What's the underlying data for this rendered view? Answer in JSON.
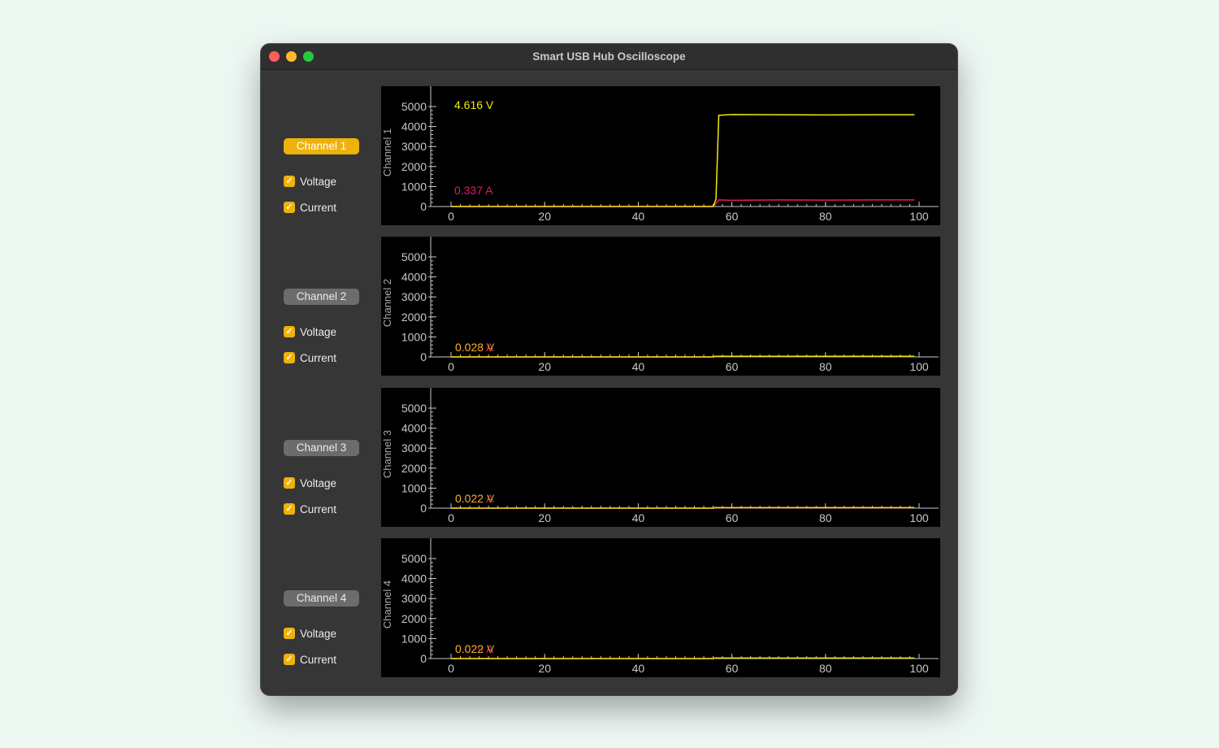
{
  "window": {
    "title": "Smart USB Hub Oscilloscope"
  },
  "colors": {
    "voltage": "#f0ea10",
    "current": "#e8176d",
    "accent": "#efb20c"
  },
  "channels": [
    {
      "button_label": "Channel 1",
      "active": true,
      "voltage_label": "Voltage",
      "current_label": "Current",
      "voltage_checked": true,
      "current_checked": true,
      "y_label": "Channel 1",
      "voltage_readout": "4.616 V",
      "current_readout": "0.337 A"
    },
    {
      "button_label": "Channel 2",
      "active": false,
      "voltage_label": "Voltage",
      "current_label": "Current",
      "voltage_checked": true,
      "current_checked": true,
      "y_label": "Channel 2",
      "voltage_readout": "0.028 V",
      "current_readout": "0.023 A"
    },
    {
      "button_label": "Channel 3",
      "active": false,
      "voltage_label": "Voltage",
      "current_label": "Current",
      "voltage_checked": true,
      "current_checked": true,
      "y_label": "Channel 3",
      "voltage_readout": "0.022 V",
      "current_readout": "0.022 A"
    },
    {
      "button_label": "Channel 4",
      "active": false,
      "voltage_label": "Voltage",
      "current_label": "Current",
      "voltage_checked": true,
      "current_checked": true,
      "y_label": "Channel 4",
      "voltage_readout": "0.022 V",
      "current_readout": "0.029 A"
    }
  ],
  "chart_data": [
    {
      "type": "line",
      "ylabel": "Channel 1",
      "xlim": [
        0,
        100
      ],
      "ylim": [
        0,
        5000
      ],
      "x_ticks": [
        0,
        20,
        40,
        60,
        80,
        100
      ],
      "y_ticks": [
        0,
        1000,
        2000,
        3000,
        4000,
        5000
      ],
      "series": [
        {
          "color": "#f0ea10",
          "x": [
            0,
            56,
            56.6,
            57.2,
            60,
            70,
            80,
            90,
            99
          ],
          "values": [
            0,
            0,
            350,
            4560,
            4600,
            4590,
            4580,
            4590,
            4590
          ]
        },
        {
          "color": "#e8176d",
          "x": [
            0,
            56,
            56.6,
            57.2,
            60,
            70,
            80,
            90,
            99
          ],
          "values": [
            0,
            0,
            150,
            330,
            310,
            330,
            320,
            330,
            330
          ]
        }
      ]
    },
    {
      "type": "line",
      "ylabel": "Channel 2",
      "xlim": [
        0,
        100
      ],
      "ylim": [
        0,
        5000
      ],
      "x_ticks": [
        0,
        20,
        40,
        60,
        80,
        100
      ],
      "y_ticks": [
        0,
        1000,
        2000,
        3000,
        4000,
        5000
      ],
      "series": [
        {
          "color": "#f0ea10",
          "x": [
            0,
            56,
            56.3,
            99
          ],
          "values": [
            0,
            0,
            30,
            30
          ]
        },
        {
          "color": "#e8176d",
          "x": [
            0,
            56,
            56.3,
            99
          ],
          "values": [
            0,
            0,
            20,
            20
          ]
        }
      ]
    },
    {
      "type": "line",
      "ylabel": "Channel 3",
      "xlim": [
        0,
        100
      ],
      "ylim": [
        0,
        5000
      ],
      "x_ticks": [
        0,
        20,
        40,
        60,
        80,
        100
      ],
      "y_ticks": [
        0,
        1000,
        2000,
        3000,
        4000,
        5000
      ],
      "series": [
        {
          "color": "#f0ea10",
          "x": [
            0,
            56,
            56.3,
            99
          ],
          "values": [
            0,
            0,
            25,
            25
          ]
        },
        {
          "color": "#e8176d",
          "x": [
            0,
            56,
            56.3,
            99
          ],
          "values": [
            0,
            0,
            20,
            20
          ]
        }
      ]
    },
    {
      "type": "line",
      "ylabel": "Channel 4",
      "xlim": [
        0,
        100
      ],
      "ylim": [
        0,
        5000
      ],
      "x_ticks": [
        0,
        20,
        40,
        60,
        80,
        100
      ],
      "y_ticks": [
        0,
        1000,
        2000,
        3000,
        4000,
        5000
      ],
      "series": [
        {
          "color": "#f0ea10",
          "x": [
            0,
            56,
            56.3,
            99
          ],
          "values": [
            0,
            0,
            25,
            25
          ]
        },
        {
          "color": "#e8176d",
          "x": [
            0,
            56,
            56.3,
            99
          ],
          "values": [
            0,
            0,
            25,
            25
          ]
        }
      ]
    }
  ]
}
